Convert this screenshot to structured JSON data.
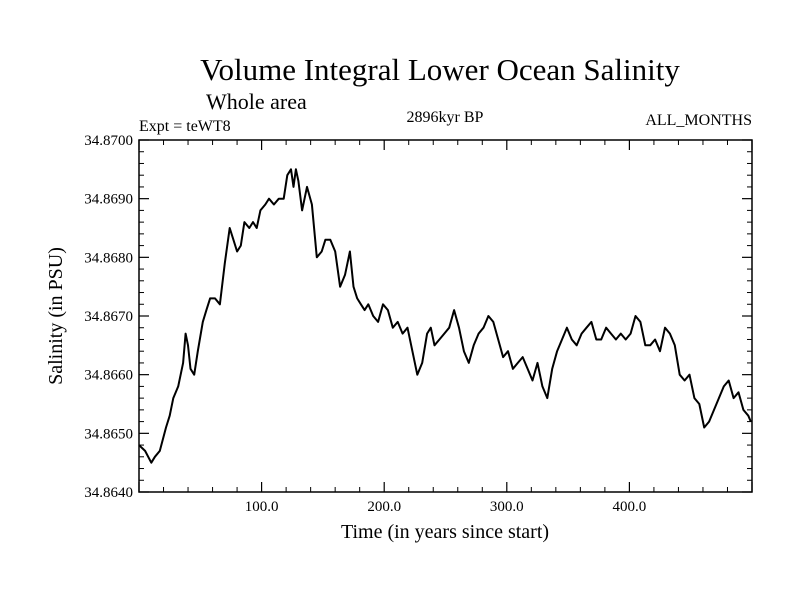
{
  "chart_data": {
    "type": "line",
    "title": "Volume Integral Lower Ocean Salinity",
    "subtitle": "Whole area",
    "left_label": "Expt = teWT8",
    "center_label": "2896kyr BP",
    "right_label": "ALL_MONTHS",
    "xlabel": "Time (in years since start)",
    "ylabel": "Salinity (in PSU)",
    "xlim": [
      0,
      500
    ],
    "ylim": [
      34.864,
      34.87
    ],
    "x_ticks": [
      100,
      200,
      300,
      400
    ],
    "x_tick_labels": [
      "100.0",
      "200.0",
      "300.0",
      "400.0"
    ],
    "y_ticks": [
      34.864,
      34.865,
      34.866,
      34.867,
      34.868,
      34.869,
      34.87
    ],
    "y_tick_labels": [
      "34.8640",
      "34.8650",
      "34.8660",
      "34.8670",
      "34.8680",
      "34.8690",
      "34.8700"
    ],
    "series": [
      {
        "name": "Salinity",
        "color": "#000000",
        "x": [
          0,
          5,
          10,
          13,
          17,
          22,
          25,
          28,
          32,
          36,
          38,
          40,
          42,
          45,
          48,
          52,
          55,
          58,
          62,
          66,
          70,
          74,
          77,
          80,
          83,
          86,
          90,
          93,
          96,
          99,
          103,
          106,
          110,
          114,
          118,
          121,
          124,
          126,
          128,
          130,
          133,
          137,
          141,
          145,
          149,
          152,
          156,
          160,
          164,
          168,
          172,
          175,
          178,
          181,
          184,
          187,
          191,
          195,
          199,
          203,
          207,
          211,
          215,
          219,
          223,
          227,
          231,
          235,
          238,
          241,
          245,
          249,
          253,
          257,
          261,
          265,
          269,
          273,
          277,
          281,
          285,
          289,
          293,
          297,
          301,
          305,
          309,
          313,
          317,
          321,
          325,
          329,
          333,
          337,
          341,
          345,
          349,
          353,
          357,
          361,
          365,
          369,
          373,
          377,
          381,
          385,
          389,
          393,
          397,
          401,
          405,
          409,
          413,
          417,
          421,
          425,
          429,
          433,
          437,
          441,
          445,
          449,
          453,
          457,
          461,
          465,
          469,
          473,
          477,
          481,
          485,
          489,
          493,
          497,
          499
        ],
        "values": [
          34.8648,
          34.8647,
          34.8645,
          34.8646,
          34.8647,
          34.8651,
          34.8653,
          34.8656,
          34.8658,
          34.8662,
          34.8667,
          34.8665,
          34.8661,
          34.866,
          34.8664,
          34.8669,
          34.8671,
          34.8673,
          34.8673,
          34.8672,
          34.8679,
          34.8685,
          34.8683,
          34.8681,
          34.8682,
          34.8686,
          34.8685,
          34.8686,
          34.8685,
          34.8688,
          34.8689,
          34.869,
          34.8689,
          34.869,
          34.869,
          34.8694,
          34.8695,
          34.8692,
          34.8695,
          34.8693,
          34.8688,
          34.8692,
          34.8689,
          34.868,
          34.8681,
          34.8683,
          34.8683,
          34.8681,
          34.8675,
          34.8677,
          34.8681,
          34.8675,
          34.8673,
          34.8672,
          34.8671,
          34.8672,
          34.867,
          34.8669,
          34.8672,
          34.8671,
          34.8668,
          34.8669,
          34.8667,
          34.8668,
          34.8664,
          34.866,
          34.8662,
          34.8667,
          34.8668,
          34.8665,
          34.8666,
          34.8667,
          34.8668,
          34.8671,
          34.8668,
          34.8664,
          34.8662,
          34.8665,
          34.8667,
          34.8668,
          34.867,
          34.8669,
          34.8666,
          34.8663,
          34.8664,
          34.8661,
          34.8662,
          34.8663,
          34.8661,
          34.8659,
          34.8662,
          34.8658,
          34.8656,
          34.8661,
          34.8664,
          34.8666,
          34.8668,
          34.8666,
          34.8665,
          34.8667,
          34.8668,
          34.8669,
          34.8666,
          34.8666,
          34.8668,
          34.8667,
          34.8666,
          34.8667,
          34.8666,
          34.8667,
          34.867,
          34.8669,
          34.8665,
          34.8665,
          34.8666,
          34.8664,
          34.8668,
          34.8667,
          34.8665,
          34.866,
          34.8659,
          34.866,
          34.8656,
          34.8655,
          34.8651,
          34.8652,
          34.8654,
          34.8656,
          34.8658,
          34.8659,
          34.8656,
          34.8657,
          34.8654,
          34.8653,
          34.8652
        ]
      }
    ]
  }
}
